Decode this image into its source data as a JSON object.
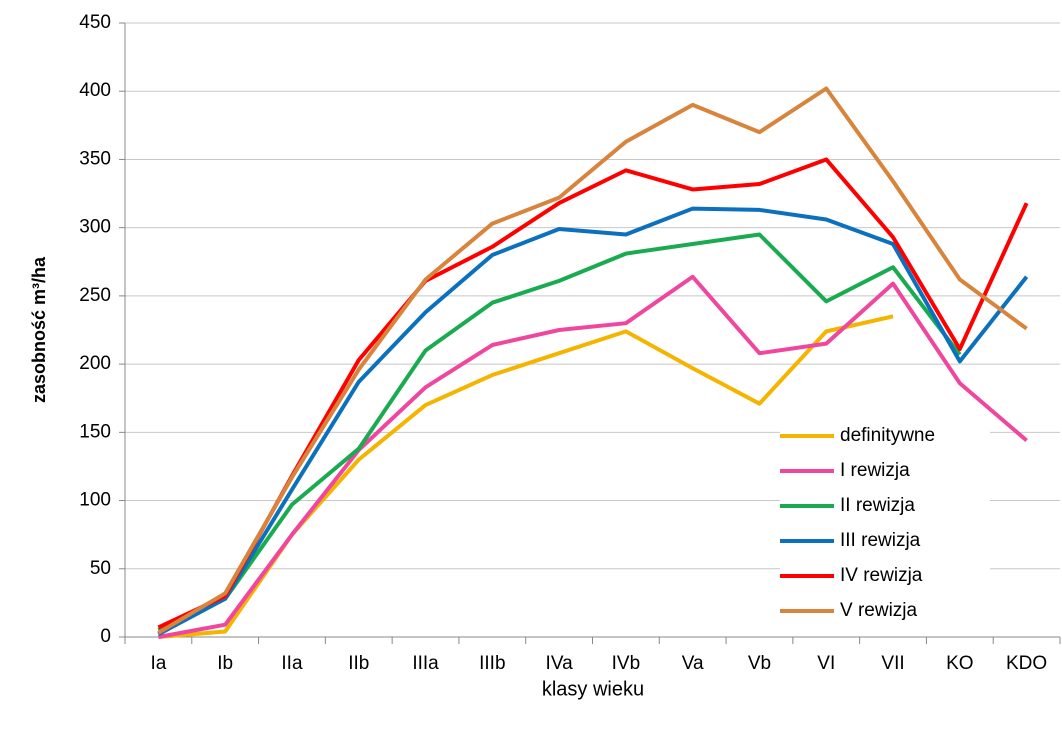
{
  "chart_data": {
    "type": "line",
    "y_label": "zasobność m³/ha",
    "x_label": "klasy wieku",
    "categories": [
      "Ia",
      "Ib",
      "IIa",
      "IIb",
      "IIIa",
      "IIIb",
      "IVa",
      "IVb",
      "Va",
      "Vb",
      "VI",
      "VII",
      "KO",
      "KDO"
    ],
    "ylim": [
      0,
      450
    ],
    "yticks": [
      0,
      50,
      100,
      150,
      200,
      250,
      300,
      350,
      400,
      450
    ],
    "grid": true,
    "legend": "right",
    "series": [
      {
        "name": "definitywne",
        "color": "#f5b400",
        "values": [
          0,
          4,
          75,
          130,
          170,
          192,
          208,
          224,
          197,
          171,
          224,
          235,
          null,
          null
        ]
      },
      {
        "name": "I rewizja",
        "color": "#f0479e",
        "values": [
          0,
          9,
          75,
          137,
          183,
          214,
          225,
          230,
          264,
          208,
          215,
          259,
          186,
          144
        ]
      },
      {
        "name": "II rewizja",
        "color": "#1aab50",
        "values": [
          5,
          28,
          97,
          138,
          210,
          245,
          261,
          281,
          288,
          295,
          246,
          271,
          207,
          null
        ]
      },
      {
        "name": "III rewizja",
        "color": "#0b70be",
        "values": [
          2,
          28,
          108,
          187,
          238,
          280,
          299,
          295,
          314,
          313,
          306,
          288,
          202,
          264
        ]
      },
      {
        "name": "IV rewizja",
        "color": "#ff0000",
        "values": [
          7,
          30,
          118,
          203,
          261,
          286,
          318,
          342,
          328,
          332,
          350,
          293,
          211,
          318
        ]
      },
      {
        "name": "V rewizja",
        "color": "#d8843c",
        "values": [
          3,
          32,
          117,
          196,
          262,
          303,
          322,
          363,
          390,
          370,
          402,
          334,
          262,
          226
        ]
      }
    ]
  }
}
